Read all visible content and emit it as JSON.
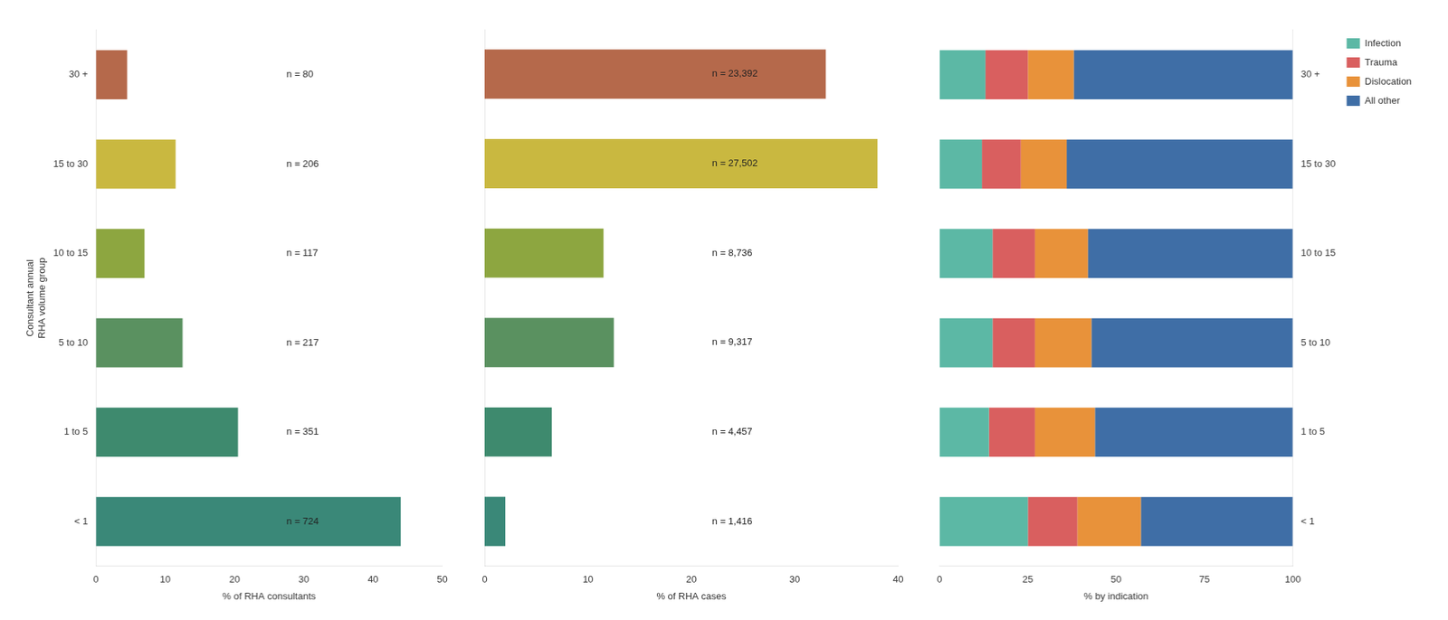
{
  "chart_data": [
    {
      "type": "bar",
      "orientation": "horizontal",
      "categories": [
        "< 1",
        "1 to 5",
        "5 to 10",
        "10 to 15",
        "15 to 30",
        "30 +"
      ],
      "values": [
        44.0,
        20.5,
        12.5,
        7.0,
        11.5,
        4.5
      ],
      "colors": [
        "#3a8878",
        "#3e8a6e",
        "#5a9160",
        "#8da640",
        "#c9b840",
        "#b5694b"
      ],
      "annotations": [
        "n = 724",
        "n = 351",
        "n = 217",
        "n = 117",
        "n = 206",
        "n = 80"
      ],
      "xlabel": "% of RHA consultants",
      "ylabel": "Consultant annual\nRHA volume group",
      "xlim": [
        0,
        50
      ],
      "xticks": [
        0,
        10,
        20,
        30,
        40,
        50
      ],
      "grid": false
    },
    {
      "type": "bar",
      "orientation": "horizontal",
      "categories": [
        "< 1",
        "1 to 5",
        "5 to 10",
        "10 to 15",
        "15 to 30",
        "30 +"
      ],
      "values": [
        2.0,
        6.5,
        12.5,
        11.5,
        38.0,
        33.0
      ],
      "colors": [
        "#3a8878",
        "#3e8a6e",
        "#5a9160",
        "#8da640",
        "#c9b840",
        "#b5694b"
      ],
      "annotations": [
        "n = 1,416",
        "n = 4,457",
        "n = 9,317",
        "n = 8,736",
        "n = 27,502",
        "n = 23,392"
      ],
      "xlabel": "% of RHA cases",
      "xlim": [
        0,
        40
      ],
      "xticks": [
        0,
        10,
        20,
        30,
        40
      ],
      "grid": false,
      "tick_labels": "x"
    },
    {
      "type": "bar",
      "orientation": "horizontal",
      "stacked": true,
      "categories": [
        "< 1",
        "1 to 5",
        "5 to 10",
        "10 to 15",
        "15 to 30",
        "30 +"
      ],
      "series": [
        {
          "name": "Infection",
          "color": "#5cb8a5",
          "values": [
            25.0,
            14.0,
            15.0,
            15.0,
            12.0,
            13.0
          ]
        },
        {
          "name": "Trauma",
          "color": "#d95f5f",
          "values": [
            14.0,
            13.0,
            12.0,
            12.0,
            11.0,
            12.0
          ]
        },
        {
          "name": "Dislocation",
          "color": "#e8923a",
          "values": [
            18.0,
            17.0,
            16.0,
            15.0,
            13.0,
            13.0
          ]
        },
        {
          "name": "All other",
          "color": "#3f6ea6",
          "values": [
            43.0,
            56.0,
            57.0,
            58.0,
            64.0,
            62.0
          ]
        }
      ],
      "xlabel": "% by indication",
      "xlim": [
        0,
        100
      ],
      "xticks": [
        0,
        25,
        50,
        75,
        100
      ],
      "grid": false,
      "legend": "upper right"
    }
  ]
}
